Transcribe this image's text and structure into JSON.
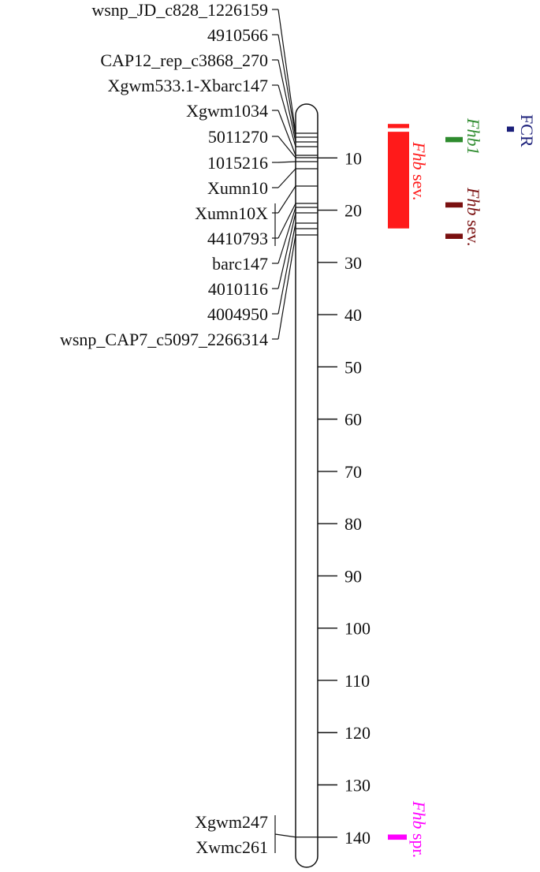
{
  "map": {
    "cm_ticks": [
      "10",
      "20",
      "30",
      "40",
      "50",
      "60",
      "70",
      "80",
      "90",
      "100",
      "110",
      "120",
      "130",
      "140"
    ],
    "marker_groups": [
      {
        "labels": [
          "wsnp_JD_c828_1226159",
          "4910566",
          "CAP12_rep_c3868_270",
          "Xgwm533.1-Xbarc147",
          "Xgwm1034",
          "5011270",
          "1015216",
          "Xumn10",
          "Xumn10X",
          "4410793",
          "barc147",
          "4010116",
          "4004950",
          "wsnp_CAP7_c5097_2266314"
        ]
      },
      {
        "labels": [
          "Xgwm247",
          "Xwmc261"
        ]
      }
    ],
    "qtls": [
      {
        "name": "fcr",
        "label_italic": "",
        "label_plain": "FCR",
        "color": "#1b1f7a",
        "segments": [
          [
            4,
            5
          ]
        ]
      },
      {
        "name": "fhb1",
        "label_italic": "Fhb1",
        "label_plain": "",
        "color": "#2e8b2e",
        "segments": [
          [
            6,
            7
          ]
        ]
      },
      {
        "name": "fhb-sev-1",
        "label_italic": "Fhb",
        "label_plain": " sev.",
        "color": "#ff1a1a",
        "segments": [
          [
            3.5,
            4.3
          ],
          [
            5,
            23.5
          ]
        ]
      },
      {
        "name": "fhb-sev-2",
        "label_italic": "Fhb",
        "label_plain": " sev.",
        "color": "#7a1010",
        "segments": [
          [
            18.5,
            19.5
          ],
          [
            24.5,
            25.5
          ]
        ]
      },
      {
        "name": "fhb-spr",
        "label_italic": "Fhb",
        "label_plain": " spr.",
        "color": "#ff00ff",
        "segments": [
          [
            139.5,
            140.5
          ]
        ]
      }
    ]
  }
}
